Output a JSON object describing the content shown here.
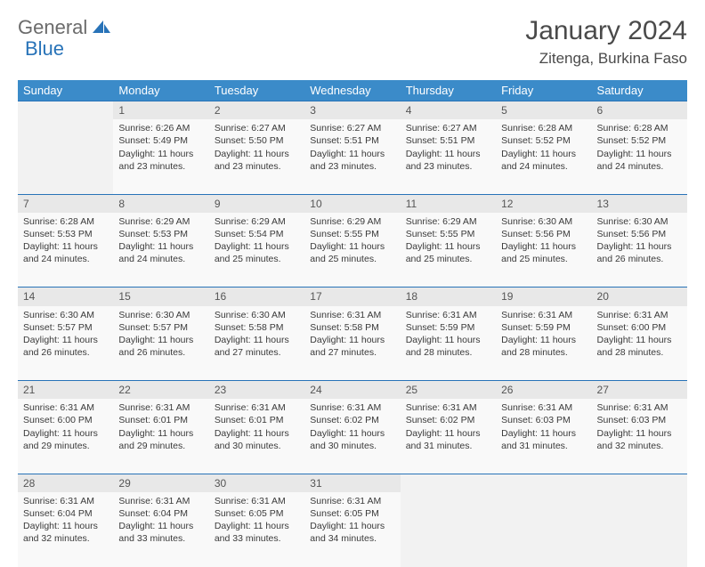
{
  "logo": {
    "text1": "General",
    "text2": "Blue"
  },
  "title": "January 2024",
  "location": "Zitenga, Burkina Faso",
  "colors": {
    "header_bg": "#3b8bc9",
    "header_text": "#ffffff",
    "border_accent": "#2873b8",
    "daynum_bg": "#e8e8e8",
    "cell_bg": "#f9f9f9",
    "empty_bg": "#f2f2f2",
    "body_text": "#3a3a3a",
    "logo_gray": "#6b6b6b",
    "logo_blue": "#2873b8"
  },
  "weekdays": [
    "Sunday",
    "Monday",
    "Tuesday",
    "Wednesday",
    "Thursday",
    "Friday",
    "Saturday"
  ],
  "weeks": [
    [
      null,
      {
        "n": "1",
        "sr": "6:26 AM",
        "ss": "5:49 PM",
        "dl": "11 hours and 23 minutes."
      },
      {
        "n": "2",
        "sr": "6:27 AM",
        "ss": "5:50 PM",
        "dl": "11 hours and 23 minutes."
      },
      {
        "n": "3",
        "sr": "6:27 AM",
        "ss": "5:51 PM",
        "dl": "11 hours and 23 minutes."
      },
      {
        "n": "4",
        "sr": "6:27 AM",
        "ss": "5:51 PM",
        "dl": "11 hours and 23 minutes."
      },
      {
        "n": "5",
        "sr": "6:28 AM",
        "ss": "5:52 PM",
        "dl": "11 hours and 24 minutes."
      },
      {
        "n": "6",
        "sr": "6:28 AM",
        "ss": "5:52 PM",
        "dl": "11 hours and 24 minutes."
      }
    ],
    [
      {
        "n": "7",
        "sr": "6:28 AM",
        "ss": "5:53 PM",
        "dl": "11 hours and 24 minutes."
      },
      {
        "n": "8",
        "sr": "6:29 AM",
        "ss": "5:53 PM",
        "dl": "11 hours and 24 minutes."
      },
      {
        "n": "9",
        "sr": "6:29 AM",
        "ss": "5:54 PM",
        "dl": "11 hours and 25 minutes."
      },
      {
        "n": "10",
        "sr": "6:29 AM",
        "ss": "5:55 PM",
        "dl": "11 hours and 25 minutes."
      },
      {
        "n": "11",
        "sr": "6:29 AM",
        "ss": "5:55 PM",
        "dl": "11 hours and 25 minutes."
      },
      {
        "n": "12",
        "sr": "6:30 AM",
        "ss": "5:56 PM",
        "dl": "11 hours and 25 minutes."
      },
      {
        "n": "13",
        "sr": "6:30 AM",
        "ss": "5:56 PM",
        "dl": "11 hours and 26 minutes."
      }
    ],
    [
      {
        "n": "14",
        "sr": "6:30 AM",
        "ss": "5:57 PM",
        "dl": "11 hours and 26 minutes."
      },
      {
        "n": "15",
        "sr": "6:30 AM",
        "ss": "5:57 PM",
        "dl": "11 hours and 26 minutes."
      },
      {
        "n": "16",
        "sr": "6:30 AM",
        "ss": "5:58 PM",
        "dl": "11 hours and 27 minutes."
      },
      {
        "n": "17",
        "sr": "6:31 AM",
        "ss": "5:58 PM",
        "dl": "11 hours and 27 minutes."
      },
      {
        "n": "18",
        "sr": "6:31 AM",
        "ss": "5:59 PM",
        "dl": "11 hours and 28 minutes."
      },
      {
        "n": "19",
        "sr": "6:31 AM",
        "ss": "5:59 PM",
        "dl": "11 hours and 28 minutes."
      },
      {
        "n": "20",
        "sr": "6:31 AM",
        "ss": "6:00 PM",
        "dl": "11 hours and 28 minutes."
      }
    ],
    [
      {
        "n": "21",
        "sr": "6:31 AM",
        "ss": "6:00 PM",
        "dl": "11 hours and 29 minutes."
      },
      {
        "n": "22",
        "sr": "6:31 AM",
        "ss": "6:01 PM",
        "dl": "11 hours and 29 minutes."
      },
      {
        "n": "23",
        "sr": "6:31 AM",
        "ss": "6:01 PM",
        "dl": "11 hours and 30 minutes."
      },
      {
        "n": "24",
        "sr": "6:31 AM",
        "ss": "6:02 PM",
        "dl": "11 hours and 30 minutes."
      },
      {
        "n": "25",
        "sr": "6:31 AM",
        "ss": "6:02 PM",
        "dl": "11 hours and 31 minutes."
      },
      {
        "n": "26",
        "sr": "6:31 AM",
        "ss": "6:03 PM",
        "dl": "11 hours and 31 minutes."
      },
      {
        "n": "27",
        "sr": "6:31 AM",
        "ss": "6:03 PM",
        "dl": "11 hours and 32 minutes."
      }
    ],
    [
      {
        "n": "28",
        "sr": "6:31 AM",
        "ss": "6:04 PM",
        "dl": "11 hours and 32 minutes."
      },
      {
        "n": "29",
        "sr": "6:31 AM",
        "ss": "6:04 PM",
        "dl": "11 hours and 33 minutes."
      },
      {
        "n": "30",
        "sr": "6:31 AM",
        "ss": "6:05 PM",
        "dl": "11 hours and 33 minutes."
      },
      {
        "n": "31",
        "sr": "6:31 AM",
        "ss": "6:05 PM",
        "dl": "11 hours and 34 minutes."
      },
      null,
      null,
      null
    ]
  ],
  "labels": {
    "sunrise": "Sunrise:",
    "sunset": "Sunset:",
    "daylight": "Daylight:"
  }
}
